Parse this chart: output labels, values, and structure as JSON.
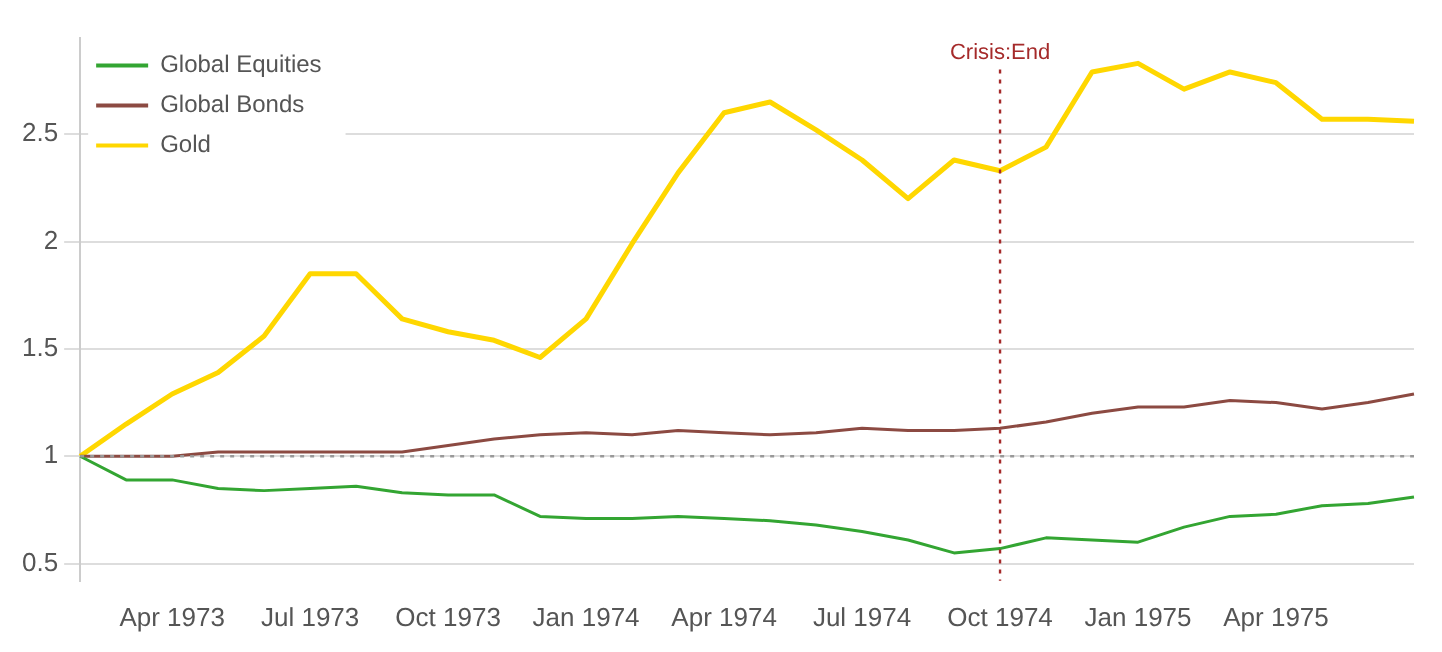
{
  "chart_data": {
    "type": "line",
    "categories": [
      null,
      null,
      "Apr 1973",
      null,
      null,
      "Jul 1973",
      null,
      null,
      "Oct 1973",
      null,
      null,
      "Jan 1974",
      null,
      null,
      "Apr 1974",
      null,
      null,
      "Jul 1974",
      null,
      null,
      "Oct 1974",
      null,
      null,
      "Jan 1975",
      null,
      null,
      "Apr 1975",
      null,
      null,
      null
    ],
    "series": [
      {
        "name": "Global Equities",
        "color": "#33a532",
        "values": [
          1.0,
          0.89,
          0.89,
          0.85,
          0.84,
          0.85,
          0.86,
          0.83,
          0.82,
          0.82,
          0.72,
          0.71,
          0.71,
          0.72,
          0.71,
          0.7,
          0.68,
          0.65,
          0.61,
          0.55,
          0.57,
          0.62,
          0.61,
          0.6,
          0.67,
          0.72,
          0.73,
          0.77,
          0.78,
          0.81
        ]
      },
      {
        "name": "Global Bonds",
        "color": "#8c4a42",
        "values": [
          1.0,
          1.0,
          1.0,
          1.02,
          1.02,
          1.02,
          1.02,
          1.02,
          1.05,
          1.08,
          1.1,
          1.11,
          1.1,
          1.12,
          1.11,
          1.1,
          1.11,
          1.13,
          1.12,
          1.12,
          1.13,
          1.16,
          1.2,
          1.23,
          1.23,
          1.26,
          1.25,
          1.22,
          1.25,
          1.29
        ]
      },
      {
        "name": "Gold",
        "color": "#ffd700",
        "values": [
          1.0,
          1.15,
          1.29,
          1.39,
          1.56,
          1.85,
          1.85,
          1.64,
          1.58,
          1.54,
          1.46,
          1.64,
          1.99,
          2.32,
          2.6,
          2.65,
          2.52,
          2.38,
          2.2,
          2.38,
          2.33,
          2.44,
          2.79,
          2.83,
          2.71,
          2.79,
          2.74,
          2.57,
          2.57,
          2.56
        ]
      }
    ],
    "ylim": [
      0.42,
      2.95
    ],
    "yticks": [
      0.5,
      1,
      1.5,
      2,
      2.5
    ],
    "grid": "y",
    "legend": "top left",
    "marker": "none",
    "line_style": "solid",
    "ref_lines": [
      {
        "axis": "y",
        "value": 1,
        "color": "#999999",
        "line_style": "dotted"
      },
      {
        "axis": "x",
        "value": "Oct 1974",
        "label": "Crisis:End",
        "color": "#a52a2a",
        "line_style": "dotted"
      }
    ]
  }
}
